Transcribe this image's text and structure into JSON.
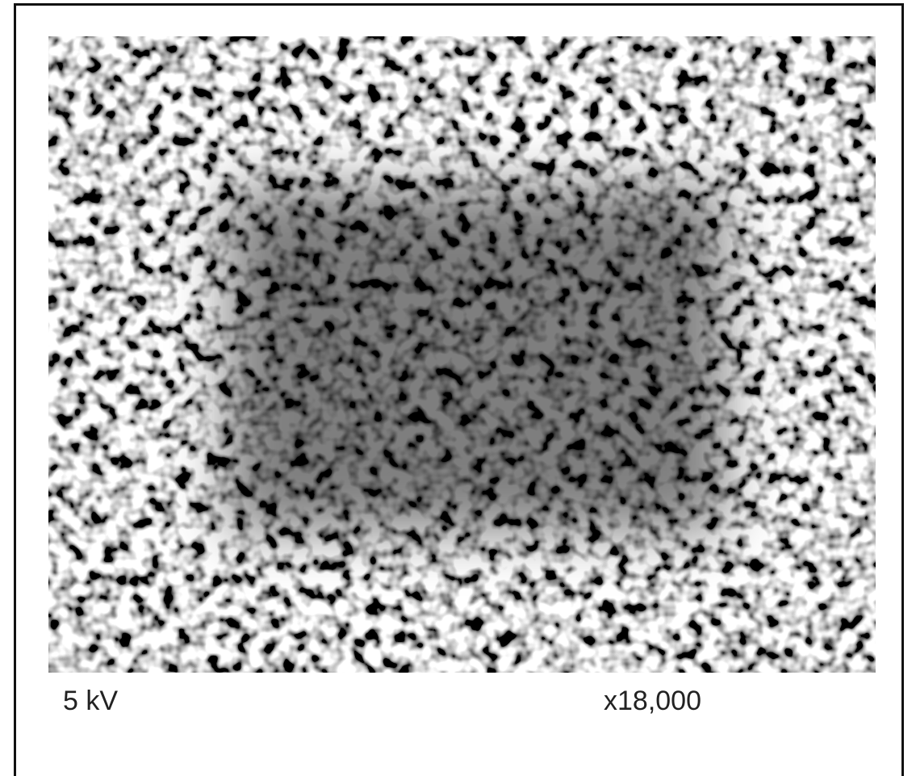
{
  "labels": {
    "voltage": "5 kV",
    "magnification": "x18,000"
  }
}
